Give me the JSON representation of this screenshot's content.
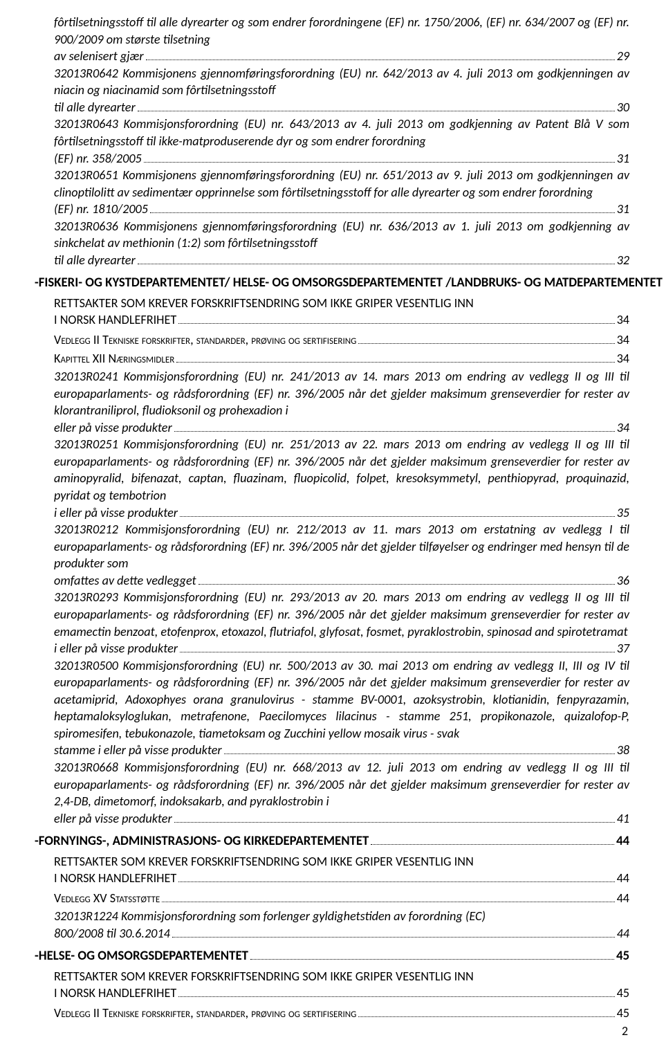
{
  "page_number": "2",
  "items": [
    {
      "type": "entry",
      "text": "fôrtilsetningsstoff til alle dyrearter og som endrer forordningene (EF) nr. 1750/2006, (EF) nr. 634/2007 og (EF) nr. 900/2009 om største tilsetning av selenisert gjær",
      "page": "29"
    },
    {
      "type": "entry",
      "text": "32013R0642 Kommisjonens gjennomføringsforordning (EU) nr. 642/2013 av 4. juli 2013 om godkjenningen av niacin og niacinamid som fôrtilsetningsstoff til alle dyrearter",
      "page": "30"
    },
    {
      "type": "entry",
      "text": "32013R0643 Kommisjonsforordning (EU) nr. 643/2013 av 4. juli 2013 om godkjenning av Patent Blå V som fôrtilsetningsstoff til ikke-matproduserende dyr og som endrer forordning (EF) nr. 358/2005",
      "page": "31"
    },
    {
      "type": "entry",
      "text": "32013R0651 Kommisjonens gjennomføringsforordning (EU) nr. 651/2013 av 9. juli 2013 om godkjenningen av clinoptilolitt av sedimentær opprinnelse som fôrtilsetningsstoff for alle dyrearter og som endrer forordning (EF) nr. 1810/2005",
      "page": "31"
    },
    {
      "type": "entry",
      "text": "32013R0636 Kommisjonens gjennomføringsforordning (EU) nr. 636/2013 av 1. juli 2013 om godkjenning av sinkchelat av methionin (1:2) som fôrtilsetningsstoff til alle dyrearter",
      "page": "32"
    },
    {
      "type": "section",
      "text": "-FISKERI- OG KYSTDEPARTEMENTET/ HELSE- OG OMSORGSDEPARTEMENTET /LANDBRUKS- OG MATDEPARTEMENTET",
      "page": "34"
    },
    {
      "type": "subheading",
      "text": "RETTSAKTER SOM KREVER FORSKRIFTSENDRING SOM IKKE GRIPER VESENTLIG INN I NORSK HANDLEFRIHET",
      "page": "34"
    },
    {
      "type": "smallcaps",
      "text": "Vedlegg II Tekniske forskrifter, standarder, prøving og sertifisering",
      "page": "34"
    },
    {
      "type": "smallcaps",
      "text": "Kapittel XII Næringsmidler",
      "page": "34"
    },
    {
      "type": "entry",
      "text": "32013R0241 Kommisjonsforordning (EU) nr. 241/2013 av 14. mars 2013 om endring av vedlegg II og III til europaparlaments- og rådsforordning (EF) nr. 396/2005 når det gjelder maksimum grenseverdier for rester av klorantraniliprol, fludioksonil og prohexadion i eller på visse produkter",
      "page": "34"
    },
    {
      "type": "entry",
      "text": "32013R0251 Kommisjonsforordning (EU) nr. 251/2013 av 22. mars 2013 om endring av vedlegg II og III til europaparlaments- og rådsforordning (EF) nr. 396/2005 når det gjelder maksimum grenseverdier for rester av aminopyralid, bifenazat, captan, fluazinam, fluopicolid, folpet, kresoksymmetyl, penthiopyrad, proquinazid, pyridat og tembotrion i eller på visse produkter",
      "page": "35"
    },
    {
      "type": "entry",
      "text": "32013R0212 Kommisjonsforordning (EU) nr. 212/2013 av 11. mars 2013 om erstatning av vedlegg I til europaparlaments- og rådsforordning (EF) nr. 396/2005 når det gjelder tilføyelser og endringer med hensyn til de produkter som omfattes av dette vedlegget",
      "page": "36"
    },
    {
      "type": "entry",
      "text": "32013R0293 Kommisjonsforordning (EU) nr. 293/2013 av 20. mars 2013 om endring av vedlegg II og III til europaparlaments- og rådsforordning (EF) nr. 396/2005 når det gjelder maksimum grenseverdier for rester av emamectin benzoat, etofenprox, etoxazol, flutriafol, glyfosat, fosmet, pyraklostrobin, spinosad and spirotetramat i eller på visse produkter",
      "page": "37"
    },
    {
      "type": "entry",
      "text": "32013R0500 Kommisjonsforordning (EU) nr. 500/2013 av 30. mai 2013 om endring av vedlegg II, III og IV til europaparlaments- og rådsforordning (EF) nr. 396/2005 når det gjelder maksimum grenseverdier for rester av acetamiprid, Adoxophyes orana granulovirus - stamme BV-0001, azoksystrobin, klotianidin, fenpyrazamin, heptamaloksyloglukan, metrafenone, Paecilomyces lilacinus - stamme 251, propikonazole, quizalofop-P, spiromesifen, tebukonazole, tiametoksam og Zucchini yellow mosaik virus - svak stamme i eller på visse produkter",
      "page": "38"
    },
    {
      "type": "entry",
      "text": "32013R0668 Kommisjonsforordning (EU) nr. 668/2013 av 12. juli 2013 om endring av vedlegg II og III til europaparlaments- og rådsforordning (EF) nr. 396/2005 når det gjelder maksimum grenseverdier for rester av 2,4-DB, dimetomorf, indoksakarb, and pyraklostrobin i eller på visse produkter",
      "page": "41"
    },
    {
      "type": "section",
      "text": "-FORNYINGS-, ADMINISTRASJONS- OG KIRKEDEPARTEMENTET",
      "page": "44"
    },
    {
      "type": "subheading",
      "text": "RETTSAKTER SOM KREVER FORSKRIFTSENDRING SOM IKKE GRIPER VESENTLIG INN I NORSK HANDLEFRIHET",
      "page": "44"
    },
    {
      "type": "smallcaps",
      "text": "Vedlegg XV Statsstøtte",
      "page": "44"
    },
    {
      "type": "entry",
      "text": "32013R1224 Kommisjonsforordning som forlenger gyldighetstiden av forordning (EC) 800/2008 til 30.6.2014",
      "page": "44"
    },
    {
      "type": "section",
      "text": "-HELSE- OG OMSORGSDEPARTEMENTET",
      "page": "45"
    },
    {
      "type": "subheading",
      "text": "RETTSAKTER SOM KREVER FORSKRIFTSENDRING SOM IKKE GRIPER VESENTLIG INN I NORSK HANDLEFRIHET",
      "page": "45"
    },
    {
      "type": "smallcaps",
      "text": "Vedlegg II Tekniske forskrifter, standarder, prøving og sertifisering",
      "page": "45"
    }
  ]
}
